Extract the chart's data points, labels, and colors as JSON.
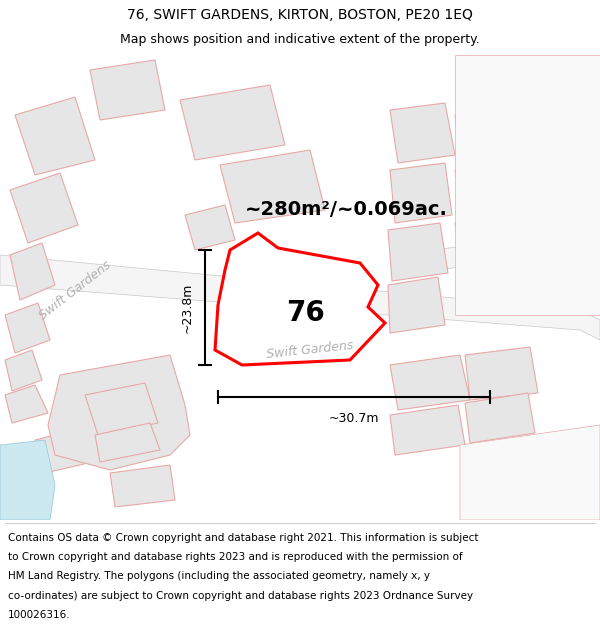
{
  "title": "76, SWIFT GARDENS, KIRTON, BOSTON, PE20 1EQ",
  "subtitle": "Map shows position and indicative extent of the property.",
  "area_label": "~280m²/~0.069ac.",
  "plot_number": "76",
  "dim_height": "~23.8m",
  "dim_width": "~30.7m",
  "street_label_left": "Swift Gardens",
  "street_label_road": "Swift Gardens",
  "background_color": "#ffffff",
  "map_bg": "#f9f9f9",
  "bld_fill": "#e6e6e6",
  "bld_edge": "#e8a8a8",
  "plot_fill": "#ffffff",
  "plot_edge": "#ff0000",
  "road_fill": "#f0f0f0",
  "road_edge": "#cccccc",
  "water_fill": "#cce8f0",
  "dim_color": "#000000",
  "street_color": "#b0b0b0",
  "footer_text": "Contains OS data © Crown copyright and database right 2021. This information is subject to Crown copyright and database rights 2023 and is reproduced with the permission of HM Land Registry. The polygons (including the associated geometry, namely x, y co-ordinates) are subject to Crown copyright and database rights 2023 Ordnance Survey 100026316.",
  "title_fontsize": 10,
  "subtitle_fontsize": 9,
  "footer_fontsize": 7.5,
  "area_fontsize": 14,
  "plot_num_fontsize": 20,
  "dim_fontsize": 9,
  "street_fontsize": 9
}
